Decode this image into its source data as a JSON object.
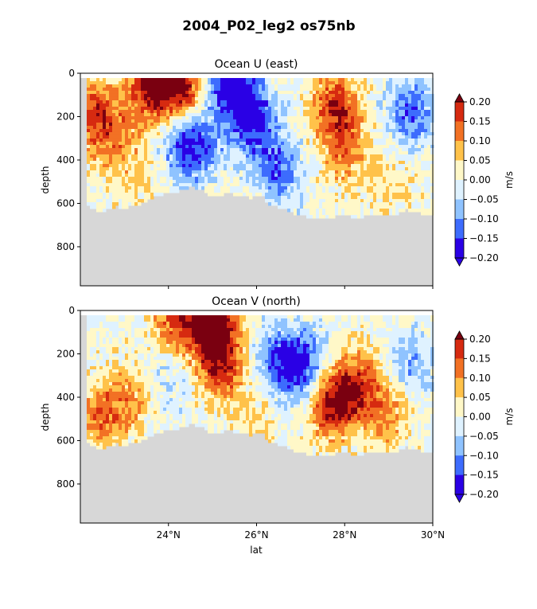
{
  "figure": {
    "title": "2004_P02_leg2 os75nb"
  },
  "colorbar": {
    "label": "m/s",
    "levels": [
      -0.2,
      -0.15,
      -0.1,
      -0.05,
      0.0,
      0.05,
      0.1,
      0.15,
      0.2
    ],
    "tick_labels": [
      "0.20",
      "0.15",
      "0.10",
      "0.05",
      "0.00",
      "−0.05",
      "−0.10",
      "−0.15",
      "−0.20"
    ],
    "colors": [
      "#2a00e5",
      "#3d6cfd",
      "#8fc3ff",
      "#dff2ff",
      "#fff8c8",
      "#ffc24a",
      "#f27124",
      "#d62a10",
      "#7a0010"
    ],
    "land_color": "#d7d7d7"
  },
  "chart_data": [
    {
      "type": "heatmap",
      "title": "Ocean U (east)",
      "xlabel": "",
      "ylabel": "depth",
      "unit": "m/s",
      "xlim": [
        22.0,
        30.0
      ],
      "ylim": [
        980,
        0
      ],
      "x_ticks": [
        24,
        26,
        28,
        30
      ],
      "x_tick_labels": [
        "",
        "",
        "",
        ""
      ],
      "y_ticks": [
        0,
        200,
        400,
        600,
        800
      ],
      "y_tick_labels": [
        "0",
        "200",
        "400",
        "600",
        "800"
      ],
      "bottom_depth": {
        "lat": [
          22.0,
          22.2,
          22.5,
          22.8,
          23.0,
          23.4,
          23.8,
          24.2,
          24.5,
          24.8,
          25.0,
          25.3,
          25.6,
          25.9,
          26.1,
          26.3,
          26.6,
          26.9,
          27.2,
          27.5,
          27.9,
          28.3,
          28.7,
          29.1,
          29.4,
          29.7,
          30.0
        ],
        "depth": [
          600,
          615,
          640,
          615,
          620,
          600,
          560,
          545,
          525,
          540,
          570,
          555,
          560,
          575,
          560,
          605,
          625,
          650,
          665,
          670,
          655,
          665,
          650,
          655,
          630,
          645,
          660
        ]
      },
      "field_description": "Dominantly negative (blue) in central latitudes 23.5-27°N; positive (orange/red) bands near 22.3°N and 27.5-28.3°N; strong positive at the surface 23-24.5°N and 27-28°N; strong negative at the surface 24.5-26.5°N.",
      "features": [
        {
          "lat": 22.3,
          "depth": 180,
          "value": 0.16
        },
        {
          "lat": 22.8,
          "depth": 320,
          "value": 0.09
        },
        {
          "lat": 23.6,
          "depth": 60,
          "value": 0.21
        },
        {
          "lat": 24.3,
          "depth": 60,
          "value": 0.21
        },
        {
          "lat": 25.4,
          "depth": 40,
          "value": -0.22
        },
        {
          "lat": 24.5,
          "depth": 330,
          "value": -0.2
        },
        {
          "lat": 25.9,
          "depth": 220,
          "value": -0.17
        },
        {
          "lat": 26.5,
          "depth": 440,
          "value": -0.12
        },
        {
          "lat": 27.8,
          "depth": 150,
          "value": 0.18
        },
        {
          "lat": 28.0,
          "depth": 370,
          "value": 0.1
        },
        {
          "lat": 29.5,
          "depth": 180,
          "value": -0.13
        },
        {
          "lat": 29.0,
          "depth": 520,
          "value": 0.05
        },
        {
          "lat": 23.3,
          "depth": 520,
          "value": 0.04
        }
      ]
    },
    {
      "type": "heatmap",
      "title": "Ocean V (north)",
      "xlabel": "lat",
      "ylabel": "depth",
      "unit": "m/s",
      "xlim": [
        22.0,
        30.0
      ],
      "ylim": [
        980,
        0
      ],
      "x_ticks": [
        24,
        26,
        28,
        30
      ],
      "x_tick_labels": [
        "24°N",
        "26°N",
        "28°N",
        "30°N"
      ],
      "y_ticks": [
        0,
        200,
        400,
        600,
        800
      ],
      "y_tick_labels": [
        "0",
        "200",
        "400",
        "600",
        "800"
      ],
      "bottom_depth": {
        "lat": [
          22.0,
          22.2,
          22.5,
          22.8,
          23.0,
          23.4,
          23.8,
          24.2,
          24.5,
          24.8,
          25.0,
          25.3,
          25.6,
          25.9,
          26.1,
          26.3,
          26.6,
          26.9,
          27.2,
          27.5,
          27.9,
          28.3,
          28.7,
          29.1,
          29.4,
          29.7,
          30.0
        ],
        "depth": [
          600,
          615,
          640,
          615,
          620,
          600,
          560,
          545,
          525,
          540,
          570,
          555,
          560,
          575,
          560,
          605,
          625,
          650,
          665,
          670,
          655,
          665,
          650,
          655,
          630,
          645,
          660
        ]
      },
      "field_description": "Dominantly positive (orange/red); strong positive near the surface 24-26°N reaching 0.2+; strong positive at depth 27.3-28.5°N; weak negative patches 23.5-26.5°N at mid depth and near 29.5°N.",
      "features": [
        {
          "lat": 25.0,
          "depth": 50,
          "value": 0.23
        },
        {
          "lat": 25.2,
          "depth": 250,
          "value": 0.18
        },
        {
          "lat": 24.2,
          "depth": 60,
          "value": 0.15
        },
        {
          "lat": 22.5,
          "depth": 480,
          "value": 0.13
        },
        {
          "lat": 23.2,
          "depth": 400,
          "value": 0.08
        },
        {
          "lat": 24.0,
          "depth": 300,
          "value": -0.06
        },
        {
          "lat": 26.4,
          "depth": 230,
          "value": -0.1
        },
        {
          "lat": 27.0,
          "depth": 260,
          "value": -0.18
        },
        {
          "lat": 27.7,
          "depth": 430,
          "value": 0.2
        },
        {
          "lat": 28.3,
          "depth": 350,
          "value": 0.16
        },
        {
          "lat": 29.5,
          "depth": 250,
          "value": -0.08
        },
        {
          "lat": 26.0,
          "depth": 500,
          "value": 0.05
        },
        {
          "lat": 29.0,
          "depth": 480,
          "value": 0.1
        }
      ]
    }
  ]
}
